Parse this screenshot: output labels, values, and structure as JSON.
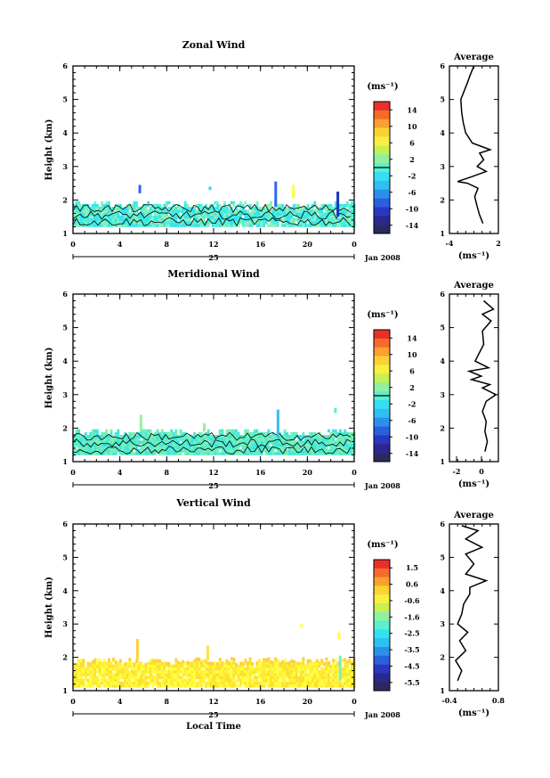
{
  "chart_data": [
    {
      "type": "heatmap",
      "title": "Zonal Wind",
      "ylabel": "Height (km)",
      "ylim": [
        1,
        6
      ],
      "yticks": [
        "1",
        "2",
        "3",
        "4",
        "5",
        "6"
      ],
      "xlim": [
        0,
        24
      ],
      "xticks": [
        "0",
        "4",
        "8",
        "12",
        "16",
        "20",
        "0"
      ],
      "date_day": "25",
      "date_label": "Jan 2008",
      "colorbar": {
        "unit": "(ms⁻¹)",
        "ticks": [
          "14",
          "10",
          "6",
          "2",
          "-2",
          "-6",
          "-10",
          "-14"
        ],
        "min": -16,
        "max": 16,
        "zero_line": true
      },
      "field_colors": [
        "#33e6f0",
        "#4ff0d8",
        "#8ef0b8"
      ],
      "field_band": [
        1.2,
        1.85
      ],
      "spikes": [
        {
          "x": 5.7,
          "y0": 2.2,
          "y1": 2.45,
          "color": "#2e66ee"
        },
        {
          "x": 11.7,
          "y0": 2.3,
          "y1": 2.4,
          "color": "#33d0f0"
        },
        {
          "x": 17.3,
          "y0": 1.8,
          "y1": 2.55,
          "color": "#2e66ee"
        },
        {
          "x": 18.8,
          "y0": 2.05,
          "y1": 2.45,
          "color": "#ffff40"
        },
        {
          "x": 22.6,
          "y0": 1.5,
          "y1": 2.25,
          "color": "#1a33c0"
        }
      ],
      "profile": {
        "title": "Average",
        "xlabel": "(ms⁻¹)",
        "xlim": [
          -4,
          2
        ],
        "xticks": [
          "-4",
          "2"
        ],
        "ylim": [
          1,
          6
        ],
        "points": [
          [
            0.1,
            1.3
          ],
          [
            -0.3,
            1.55
          ],
          [
            -0.6,
            1.8
          ],
          [
            -0.9,
            2.1
          ],
          [
            -0.5,
            2.35
          ],
          [
            -1.8,
            2.5
          ],
          [
            -3.0,
            2.55
          ],
          [
            -1.2,
            2.7
          ],
          [
            0.5,
            2.85
          ],
          [
            -0.6,
            3.0
          ],
          [
            0.2,
            3.2
          ],
          [
            -0.3,
            3.4
          ],
          [
            1.0,
            3.5
          ],
          [
            -1.2,
            3.7
          ],
          [
            -2.0,
            4.0
          ],
          [
            -2.3,
            4.3
          ],
          [
            -2.5,
            4.6
          ],
          [
            -2.6,
            5.0
          ],
          [
            -1.8,
            5.5
          ],
          [
            -1.5,
            5.7
          ],
          [
            -1.0,
            6.0
          ]
        ]
      }
    },
    {
      "type": "heatmap",
      "title": "Meridional Wind",
      "ylabel": "Height (km)",
      "ylim": [
        1,
        6
      ],
      "yticks": [
        "1",
        "2",
        "3",
        "4",
        "5",
        "6"
      ],
      "xlim": [
        0,
        24
      ],
      "xticks": [
        "0",
        "4",
        "8",
        "12",
        "16",
        "20",
        "0"
      ],
      "date_day": "25",
      "date_label": "Jan 2008",
      "colorbar": {
        "unit": "(ms⁻¹)",
        "ticks": [
          "14",
          "10",
          "6",
          "2",
          "-2",
          "-6",
          "-10",
          "-14"
        ],
        "min": -16,
        "max": 16,
        "zero_line": true
      },
      "field_colors": [
        "#5af0c8",
        "#7ef0b0",
        "#40e6e0"
      ],
      "field_band": [
        1.2,
        1.85
      ],
      "spikes": [
        {
          "x": 5.8,
          "y0": 1.9,
          "y1": 2.4,
          "color": "#9af0a0"
        },
        {
          "x": 11.2,
          "y0": 1.9,
          "y1": 2.15,
          "color": "#9af0a0"
        },
        {
          "x": 17.5,
          "y0": 1.7,
          "y1": 2.55,
          "color": "#33c0f0"
        },
        {
          "x": 22.4,
          "y0": 2.45,
          "y1": 2.6,
          "color": "#4ff0d8"
        }
      ],
      "profile": {
        "title": "Average",
        "xlabel": "(ms⁻¹)",
        "xlim": [
          -3,
          1
        ],
        "xticks": [
          "-2",
          "0"
        ],
        "ylim": [
          1,
          6
        ],
        "points": [
          [
            -0.1,
            1.3
          ],
          [
            0.1,
            1.6
          ],
          [
            -0.1,
            1.9
          ],
          [
            0.0,
            2.2
          ],
          [
            -0.3,
            2.5
          ],
          [
            0.0,
            2.8
          ],
          [
            0.8,
            3.0
          ],
          [
            -0.3,
            3.2
          ],
          [
            0.3,
            3.3
          ],
          [
            -1.2,
            3.45
          ],
          [
            -0.4,
            3.55
          ],
          [
            -1.4,
            3.7
          ],
          [
            0.2,
            3.8
          ],
          [
            -0.9,
            4.0
          ],
          [
            -0.2,
            4.5
          ],
          [
            -0.3,
            4.9
          ],
          [
            0.4,
            5.2
          ],
          [
            -0.3,
            5.4
          ],
          [
            0.6,
            5.55
          ],
          [
            -0.2,
            5.8
          ]
        ]
      }
    },
    {
      "type": "heatmap",
      "title": "Vertical Wind",
      "ylabel": "Height (km)",
      "xlabel": "Local Time",
      "ylim": [
        1,
        6
      ],
      "yticks": [
        "1",
        "2",
        "3",
        "4",
        "5",
        "6"
      ],
      "xlim": [
        0,
        24
      ],
      "xticks": [
        "0",
        "4",
        "8",
        "12",
        "16",
        "20",
        "0"
      ],
      "date_day": "25",
      "date_label": "Jan 2008",
      "colorbar": {
        "unit": "(ms⁻¹)",
        "ticks": [
          "1.5",
          "0.6",
          "-0.6",
          "-1.6",
          "-2.5",
          "-3.5",
          "-4.5",
          "-5.5"
        ],
        "min": -6,
        "max": 2,
        "zero_line": false
      },
      "field_colors": [
        "#ffff40",
        "#ffef38",
        "#fbe230"
      ],
      "field_band": [
        1.1,
        1.85
      ],
      "top_color": "#ffd040",
      "spikes": [
        {
          "x": 5.5,
          "y0": 1.9,
          "y1": 2.55,
          "color": "#ffd040"
        },
        {
          "x": 11.5,
          "y0": 1.9,
          "y1": 2.35,
          "color": "#ffe040"
        },
        {
          "x": 19.5,
          "y0": 2.9,
          "y1": 3.0,
          "color": "#ffff40"
        },
        {
          "x": 22.7,
          "y0": 2.55,
          "y1": 2.75,
          "color": "#ffff40"
        },
        {
          "x": 22.8,
          "y0": 1.3,
          "y1": 2.05,
          "color": "#7ef0b0"
        }
      ],
      "profile": {
        "title": "Average",
        "xlabel": "(ms⁻¹)",
        "xlim": [
          -0.4,
          0.8
        ],
        "xticks": [
          "-0.4",
          "0.8"
        ],
        "ylim": [
          1,
          6
        ],
        "points": [
          [
            -0.2,
            1.3
          ],
          [
            -0.1,
            1.6
          ],
          [
            -0.25,
            1.9
          ],
          [
            0.0,
            2.2
          ],
          [
            -0.15,
            2.5
          ],
          [
            0.05,
            2.75
          ],
          [
            -0.2,
            3.0
          ],
          [
            -0.1,
            3.3
          ],
          [
            -0.05,
            3.6
          ],
          [
            0.1,
            3.9
          ],
          [
            0.1,
            4.1
          ],
          [
            0.5,
            4.3
          ],
          [
            0.0,
            4.5
          ],
          [
            0.2,
            4.8
          ],
          [
            0.0,
            5.1
          ],
          [
            0.4,
            5.3
          ],
          [
            0.0,
            5.55
          ],
          [
            0.3,
            5.8
          ],
          [
            -0.1,
            5.95
          ]
        ]
      }
    }
  ]
}
